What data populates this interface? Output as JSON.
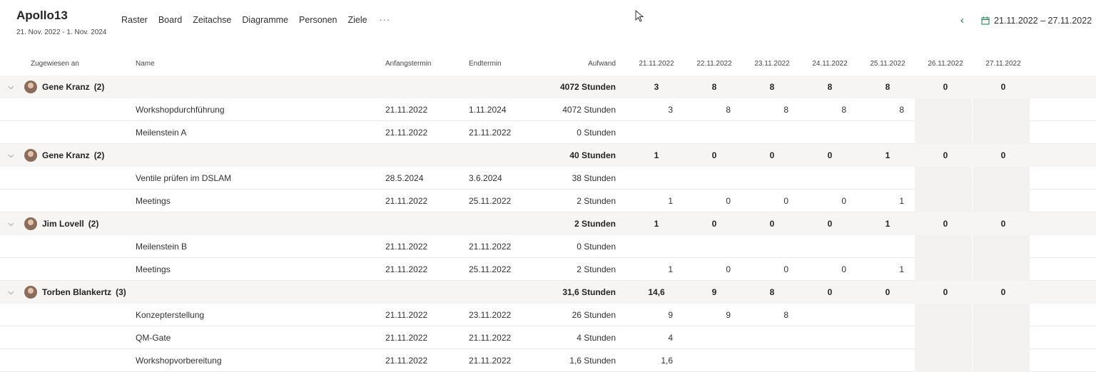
{
  "project": {
    "title": "Apollo13",
    "dates": "21. Nov. 2022 - 1. Nov. 2024"
  },
  "nav": [
    "Raster",
    "Board",
    "Zeitachse",
    "Diagramme",
    "Personen",
    "Ziele"
  ],
  "nav_more": "···",
  "date_range": "21.11.2022 – 27.11.2022",
  "icons": {
    "prev": "chevron-left-icon",
    "next": "chevron-right-icon",
    "calendar": "calendar-icon",
    "expand": "chevron-down-icon"
  },
  "accent_color": "#107c41",
  "columns": {
    "assigned": "Zugewiesen an",
    "name": "Name",
    "start": "Anfangstermin",
    "end": "Endtermin",
    "effort": "Aufwand",
    "days": [
      "21.11.2022",
      "22.11.2022",
      "23.11.2022",
      "24.11.2022",
      "25.11.2022",
      "26.11.2022",
      "27.11.2022"
    ]
  },
  "groups": [
    {
      "person": "Gene Kranz",
      "count": "(2)",
      "effort": "4072 Stunden",
      "days": [
        "3",
        "8",
        "8",
        "8",
        "8",
        "0",
        "0"
      ],
      "tasks": [
        {
          "name": "Workshopdurchführung",
          "start": "21.11.2022",
          "end": "1.11.2024",
          "effort": "4072 Stunden",
          "days": [
            "3",
            "8",
            "8",
            "8",
            "8",
            "",
            ""
          ]
        },
        {
          "name": "Meilenstein A",
          "start": "21.11.2022",
          "end": "21.11.2022",
          "effort": "0 Stunden",
          "days": [
            "",
            "",
            "",
            "",
            "",
            "",
            ""
          ]
        }
      ]
    },
    {
      "person": "Gene Kranz",
      "count": "(2)",
      "effort": "40 Stunden",
      "days": [
        "1",
        "0",
        "0",
        "0",
        "1",
        "0",
        "0"
      ],
      "tasks": [
        {
          "name": "Ventile prüfen im DSLAM",
          "start": "28.5.2024",
          "end": "3.6.2024",
          "effort": "38 Stunden",
          "days": [
            "",
            "",
            "",
            "",
            "",
            "",
            ""
          ]
        },
        {
          "name": "Meetings",
          "start": "21.11.2022",
          "end": "25.11.2022",
          "effort": "2 Stunden",
          "days": [
            "1",
            "0",
            "0",
            "0",
            "1",
            "",
            ""
          ]
        }
      ]
    },
    {
      "person": "Jim Lovell",
      "count": "(2)",
      "effort": "2 Stunden",
      "days": [
        "1",
        "0",
        "0",
        "0",
        "1",
        "0",
        "0"
      ],
      "tasks": [
        {
          "name": "Meilenstein B",
          "start": "21.11.2022",
          "end": "21.11.2022",
          "effort": "0 Stunden",
          "days": [
            "",
            "",
            "",
            "",
            "",
            "",
            ""
          ]
        },
        {
          "name": "Meetings",
          "start": "21.11.2022",
          "end": "25.11.2022",
          "effort": "2 Stunden",
          "days": [
            "1",
            "0",
            "0",
            "0",
            "1",
            "",
            ""
          ]
        }
      ]
    },
    {
      "person": "Torben Blankertz",
      "count": "(3)",
      "effort": "31,6 Stunden",
      "days": [
        "14,6",
        "9",
        "8",
        "0",
        "0",
        "0",
        "0"
      ],
      "tasks": [
        {
          "name": "Konzepterstellung",
          "start": "21.11.2022",
          "end": "23.11.2022",
          "effort": "26 Stunden",
          "days": [
            "9",
            "9",
            "8",
            "",
            "",
            "",
            ""
          ]
        },
        {
          "name": "QM-Gate",
          "start": "21.11.2022",
          "end": "21.11.2022",
          "effort": "4 Stunden",
          "days": [
            "4",
            "",
            "",
            "",
            "",
            "",
            ""
          ]
        },
        {
          "name": "Workshopvorbereitung",
          "start": "21.11.2022",
          "end": "21.11.2022",
          "effort": "1,6 Stunden",
          "days": [
            "1,6",
            "",
            "",
            "",
            "",
            "",
            ""
          ]
        }
      ]
    }
  ]
}
